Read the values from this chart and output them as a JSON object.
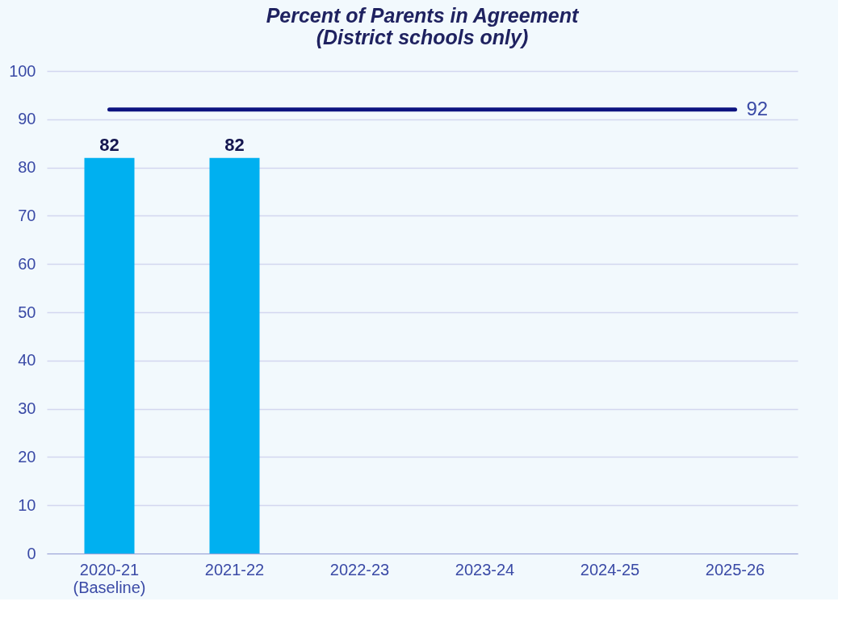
{
  "chart_data": {
    "type": "bar",
    "title": "Percent of Parents in Agreement\n(District schools only)",
    "categories": [
      "2020-21\n(Baseline)",
      "2021-22",
      "2022-23",
      "2023-24",
      "2024-25",
      "2025-26"
    ],
    "values": [
      82,
      82,
      null,
      null,
      null,
      null
    ],
    "color": "#00b0f0",
    "ylim": [
      0,
      100
    ],
    "yticks": [
      0,
      10,
      20,
      30,
      40,
      50,
      60,
      70,
      80,
      90,
      100
    ],
    "grid": "y",
    "data_labels": true,
    "ref_lines": [
      {
        "axis": "y",
        "value": 92,
        "label": "92",
        "color": "#0d1480"
      }
    ]
  }
}
